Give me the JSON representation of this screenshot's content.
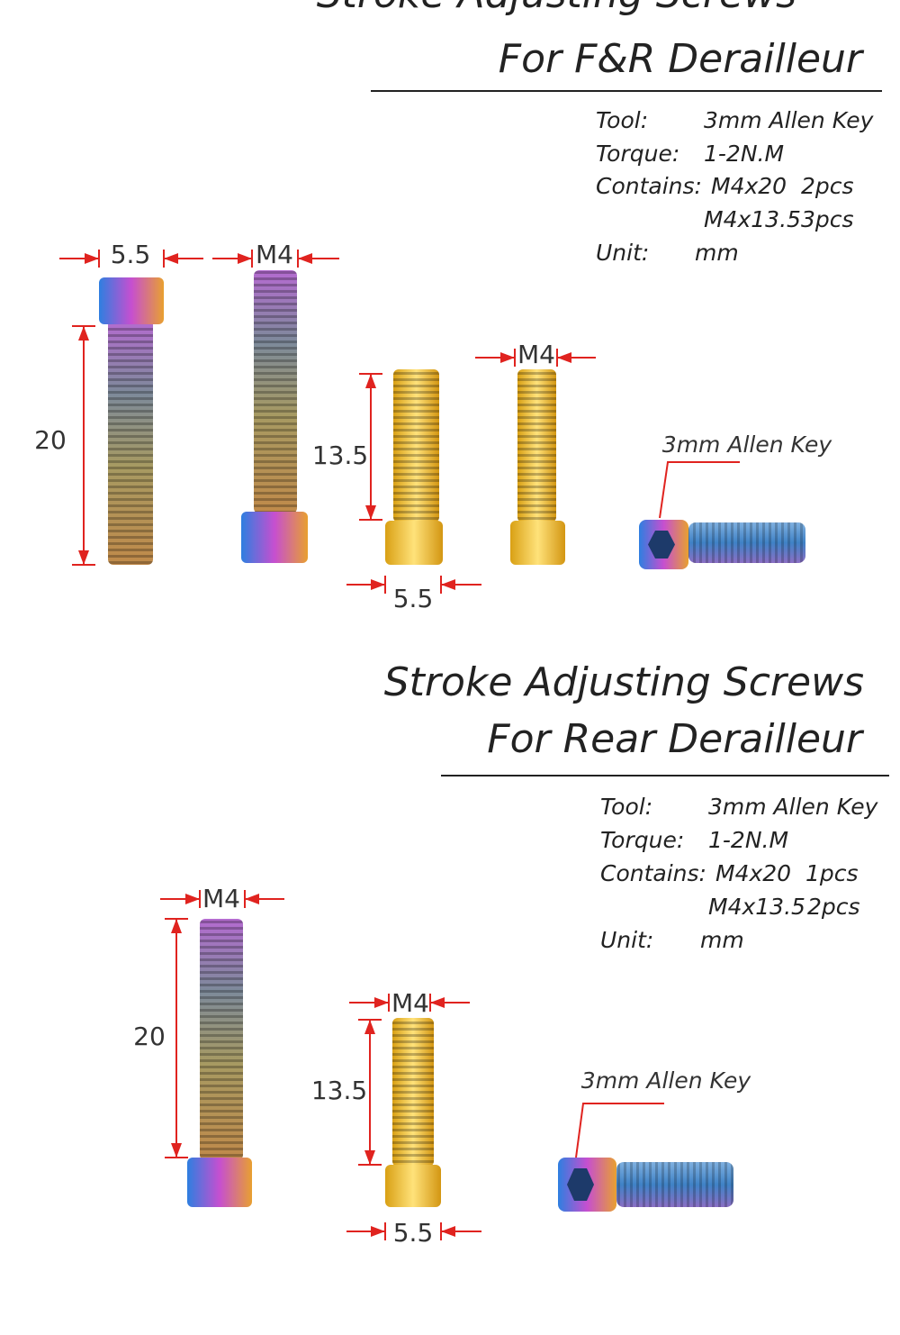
{
  "sections": [
    {
      "title_lines": [
        "Stroke Adjusting Screws",
        "For F&R Derailleur"
      ],
      "specs": [
        [
          "Tool:",
          "3mm Allen Key"
        ],
        [
          "Torque:",
          "1-2N.M"
        ],
        [
          "Contains:",
          "M4x20",
          "2pcs"
        ],
        [
          "M4x13.5",
          "3pcs"
        ],
        [
          "Unit:",
          "mm"
        ]
      ],
      "dimensions": [
        "5.5",
        "M4",
        "20",
        "13.5",
        "M4",
        "5.5"
      ],
      "callout": "3mm Allen Key"
    },
    {
      "title_lines": [
        "Stroke Adjusting Screws",
        "For Rear Derailleur"
      ],
      "specs": [
        [
          "Tool:",
          "3mm Allen Key"
        ],
        [
          "Torque:",
          "1-2N.M"
        ],
        [
          "Contains:",
          "M4x20",
          "1pcs"
        ],
        [
          "M4x13.5",
          "2pcs"
        ],
        [
          "Unit:",
          "mm"
        ]
      ],
      "dimensions": [
        "M4",
        "20",
        "M4",
        "13.5",
        "5.5"
      ],
      "callout": "3mm Allen Key"
    }
  ]
}
